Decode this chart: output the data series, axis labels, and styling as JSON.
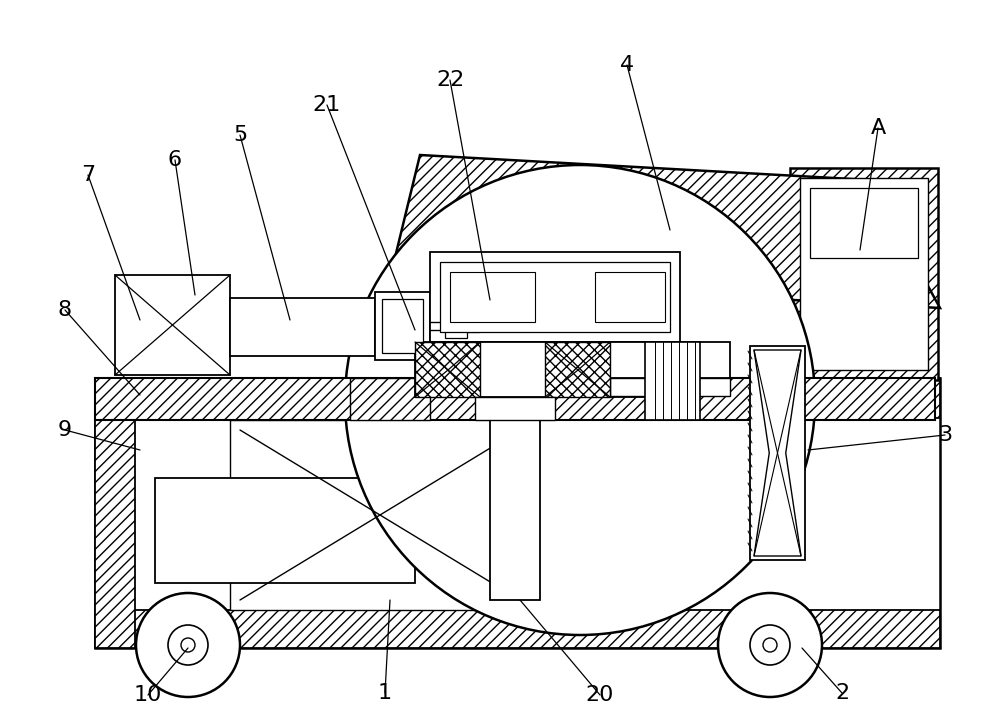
{
  "bg_color": "#ffffff",
  "line_color": "#000000",
  "figsize": [
    10.0,
    7.17
  ],
  "dpi": 100
}
